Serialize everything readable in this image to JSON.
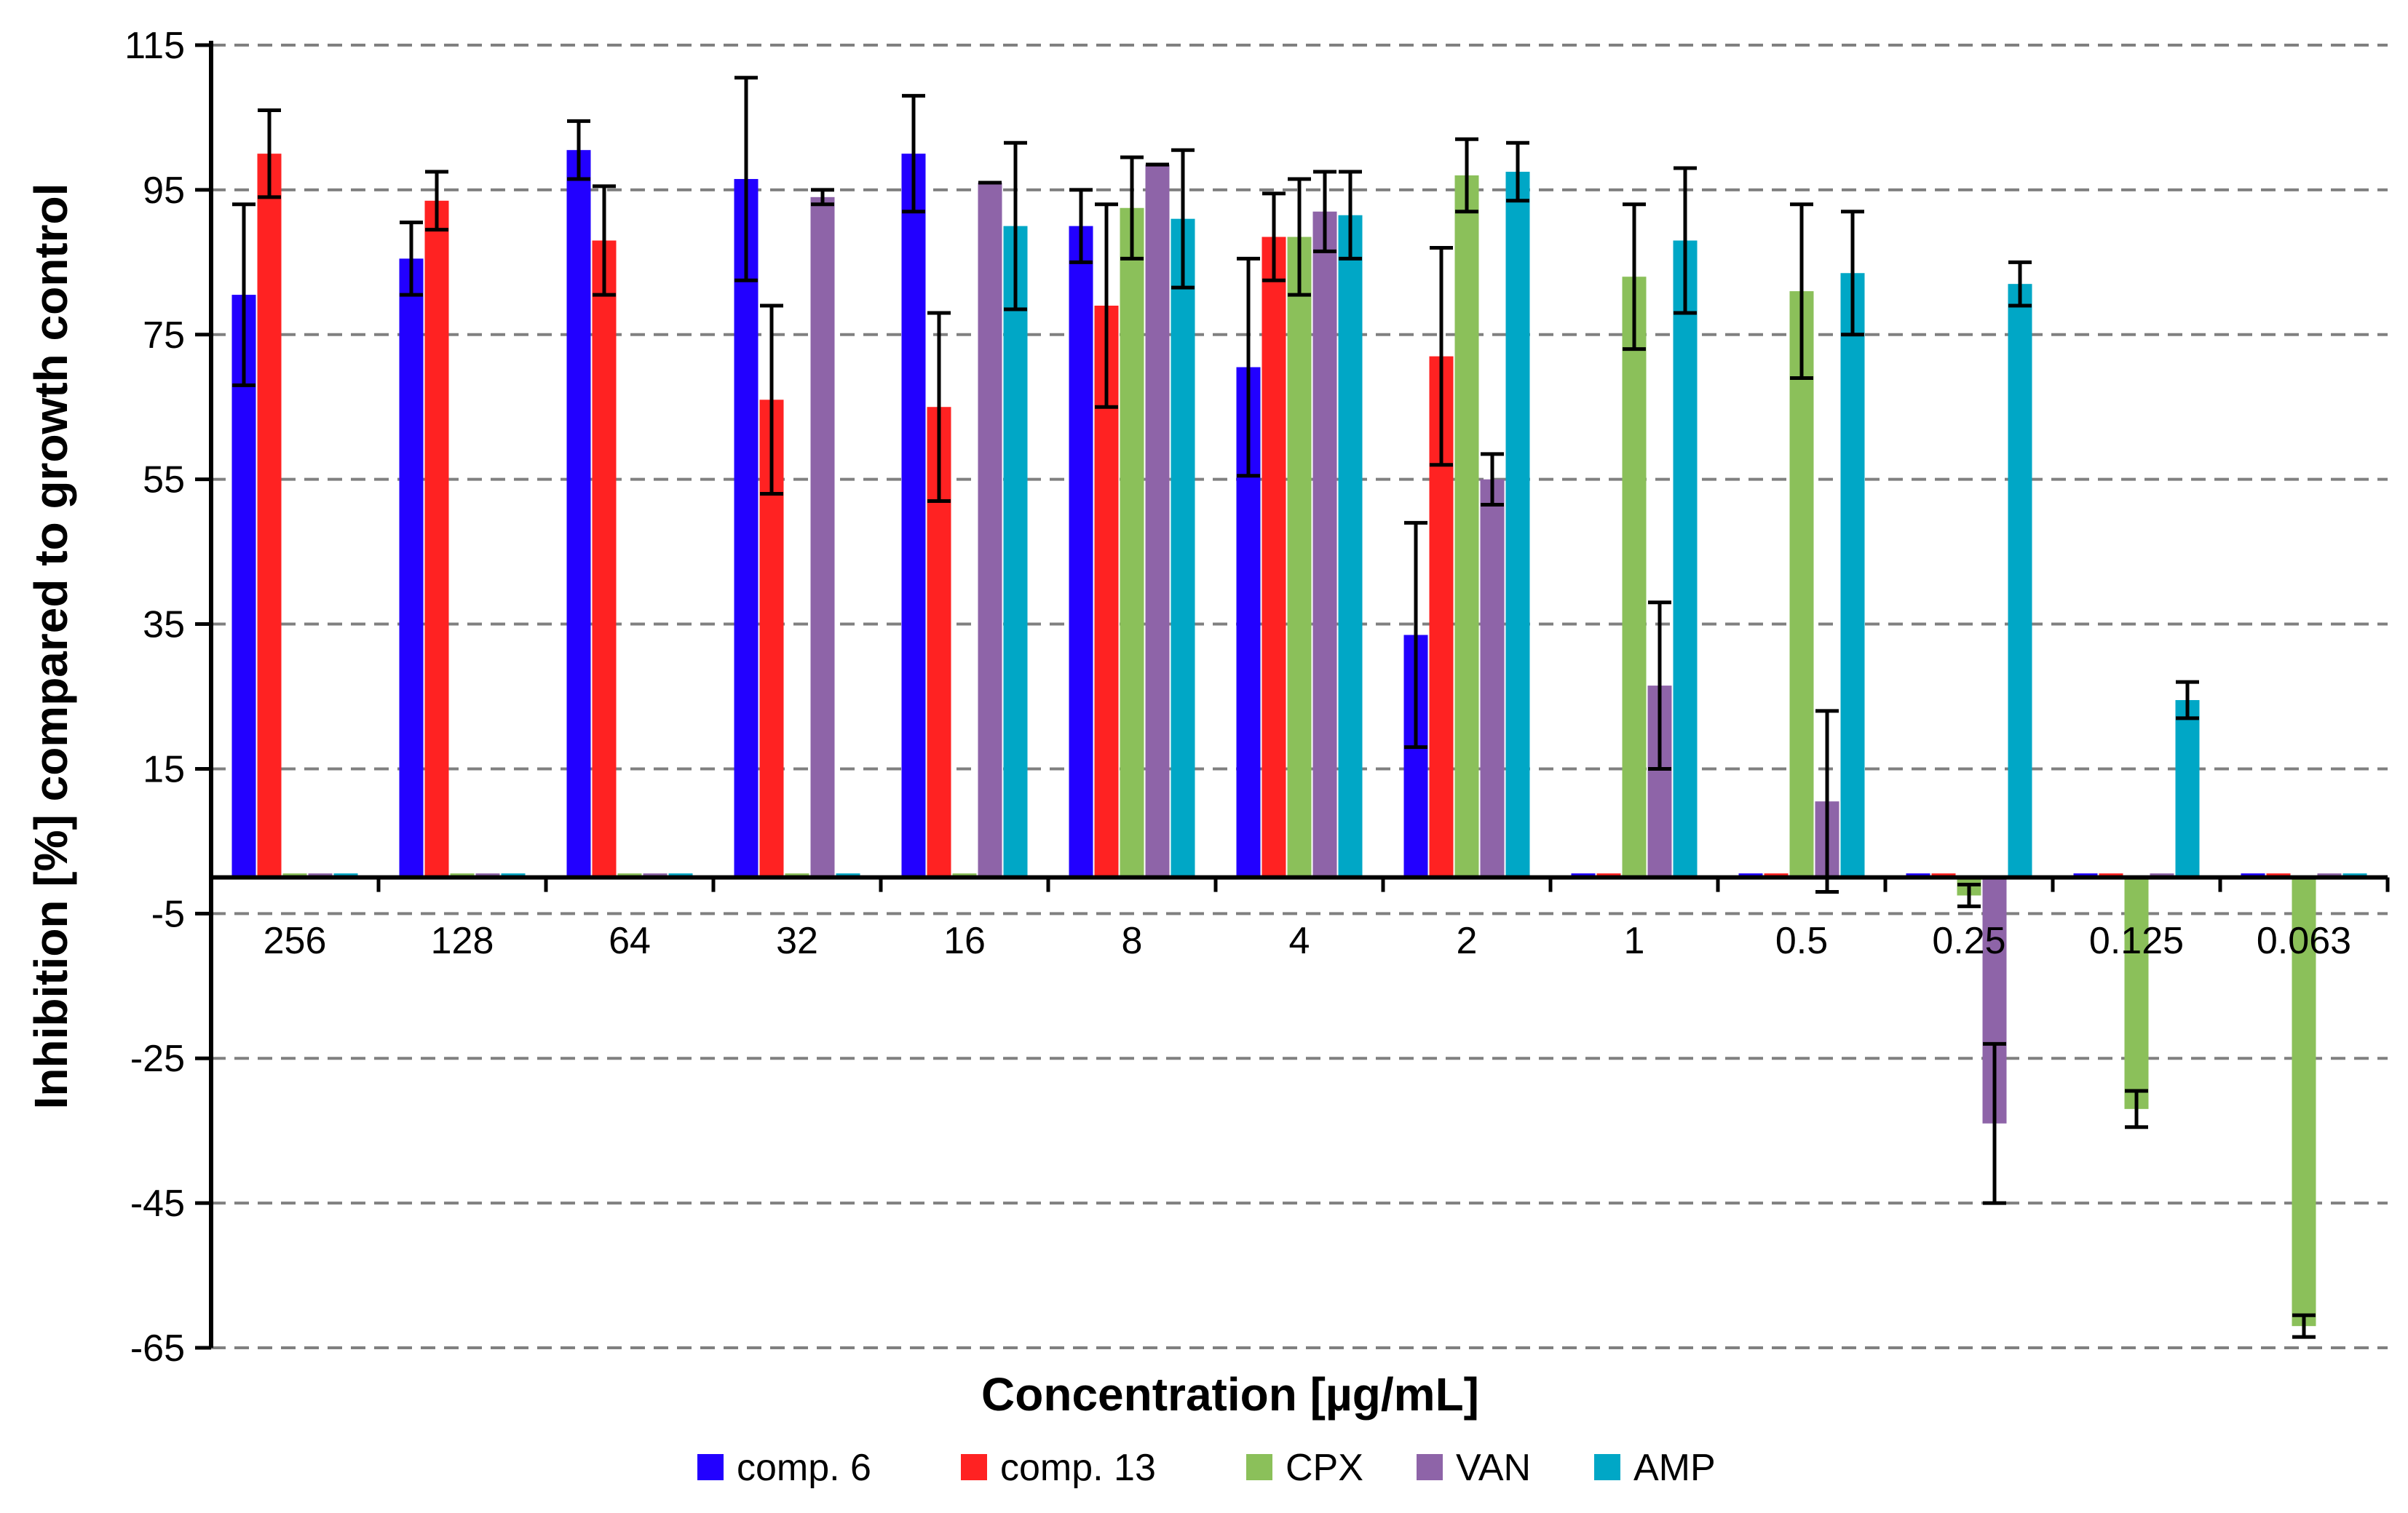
{
  "chart_data": {
    "type": "bar",
    "title": "",
    "xlabel": "Concentration [µg/mL]",
    "ylabel": "Inhibition [%]  compared to growth control",
    "ylim": [
      -65,
      115
    ],
    "yticks": [
      115,
      95,
      75,
      55,
      35,
      15,
      -5,
      -25,
      -45,
      -65
    ],
    "grid": true,
    "legend_position": "bottom",
    "categories": [
      "256",
      "128",
      "64",
      "32",
      "16",
      "8",
      "4",
      "2",
      "1",
      "0.5",
      "0.25",
      "0.125",
      "0.063"
    ],
    "series": [
      {
        "name": "comp. 6",
        "color": "#2200ff",
        "values": [
          80.5,
          85.5,
          100.5,
          96.5,
          100,
          90,
          70.5,
          33.5,
          null,
          null,
          null,
          null,
          null
        ],
        "errors": [
          12.5,
          5,
          4,
          14,
          8,
          5,
          15,
          15.5,
          null,
          null,
          null,
          null,
          null
        ]
      },
      {
        "name": "comp. 13",
        "color": "#ff2222",
        "values": [
          100,
          93.5,
          88,
          66,
          65,
          79,
          88.5,
          72,
          null,
          null,
          null,
          null,
          null
        ],
        "errors": [
          6,
          4,
          7.5,
          13,
          13,
          14,
          6,
          15,
          null,
          null,
          null,
          null,
          null
        ]
      },
      {
        "name": "CPX",
        "color": "#8bc05a",
        "values": [
          null,
          null,
          null,
          null,
          null,
          92.5,
          88.5,
          97,
          83,
          81,
          -2.5,
          -32,
          -62
        ],
        "errors": [
          null,
          null,
          null,
          null,
          null,
          7,
          8,
          5,
          10,
          12,
          1.5,
          2.5,
          1.5
        ]
      },
      {
        "name": "VAN",
        "color": "#8e64a8",
        "values": [
          null,
          null,
          null,
          94,
          96,
          98.5,
          92,
          55,
          26.5,
          10.5,
          -34,
          null,
          null
        ],
        "errors": [
          null,
          null,
          null,
          1,
          0,
          0,
          5.5,
          3.5,
          11.5,
          12.5,
          11,
          null,
          null
        ]
      },
      {
        "name": "AMP",
        "color": "#00a7c6",
        "values": [
          null,
          null,
          null,
          null,
          90,
          91,
          91.5,
          97.5,
          88,
          83.5,
          82,
          24.5,
          null
        ],
        "errors": [
          null,
          null,
          null,
          null,
          11.5,
          9.5,
          6,
          4,
          10,
          8.5,
          3,
          2.5,
          null
        ]
      }
    ]
  }
}
